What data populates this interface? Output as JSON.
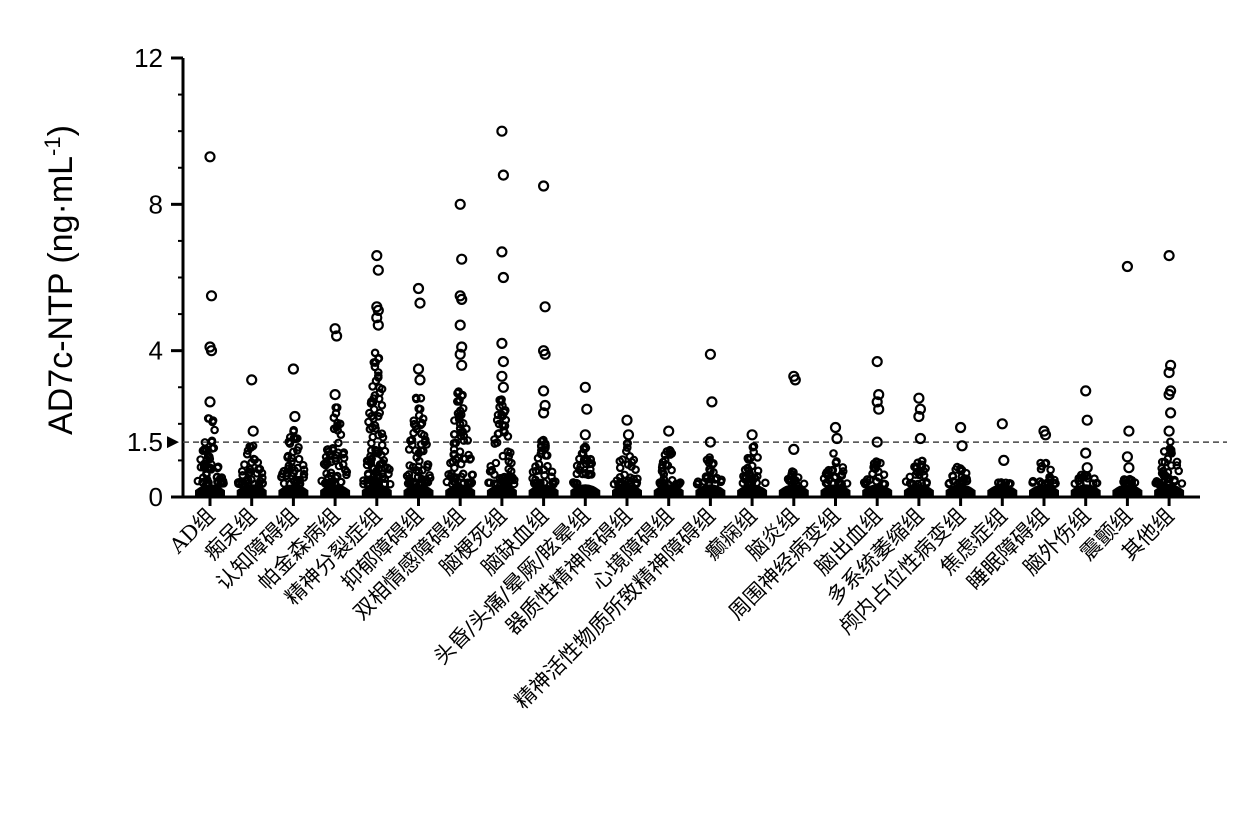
{
  "chart_data": {
    "type": "scatter",
    "ylabel": "AD7c-NTP (ng·mL",
    "ylabel_sup": "-1",
    "ylim": [
      0,
      12
    ],
    "yticks": [
      {
        "value": 0,
        "label": "0"
      },
      {
        "value": 1.5,
        "label": "1.5"
      },
      {
        "value": 4,
        "label": "4"
      },
      {
        "value": 8,
        "label": "8"
      },
      {
        "value": 12,
        "label": "12"
      }
    ],
    "reference_line": {
      "value": 1.5,
      "label": "1.5"
    },
    "grid": false,
    "categories": [
      {
        "label": "AD组",
        "max_dense": 2.3,
        "outliers": [
          9.3,
          5.5,
          4.1,
          4.0,
          2.6
        ]
      },
      {
        "label": "痴呆组",
        "max_dense": 1.6,
        "outliers": [
          3.2,
          1.8
        ]
      },
      {
        "label": "认知障碍组",
        "max_dense": 1.9,
        "outliers": [
          3.5,
          2.2
        ]
      },
      {
        "label": "帕金森病组",
        "max_dense": 2.6,
        "outliers": [
          4.6,
          4.4,
          2.8
        ]
      },
      {
        "label": "精神分裂症组",
        "max_dense": 4.0,
        "outliers": [
          6.6,
          6.2,
          5.2,
          5.1,
          4.9,
          4.7
        ]
      },
      {
        "label": "抑郁障碍组",
        "max_dense": 2.8,
        "outliers": [
          5.7,
          5.3,
          3.5,
          3.2
        ]
      },
      {
        "label": "双相情感障碍组",
        "max_dense": 3.0,
        "outliers": [
          8.0,
          6.5,
          5.5,
          5.4,
          4.7,
          4.1,
          3.9,
          3.6
        ]
      },
      {
        "label": "脑梗死组",
        "max_dense": 2.7,
        "outliers": [
          10.0,
          8.8,
          6.7,
          6.0,
          4.2,
          3.7,
          3.3,
          3.0
        ]
      },
      {
        "label": "脑缺血组",
        "max_dense": 1.6,
        "outliers": [
          8.5,
          5.2,
          4.0,
          3.9,
          2.9,
          2.5,
          2.3
        ]
      },
      {
        "label": "头昏/头痛/晕厥/眩晕组",
        "max_dense": 1.4,
        "outliers": [
          3.0,
          2.4,
          1.7
        ]
      },
      {
        "label": "器质性精神障碍组",
        "max_dense": 1.5,
        "outliers": [
          2.1,
          1.7
        ]
      },
      {
        "label": "心境障碍组",
        "max_dense": 1.3,
        "outliers": [
          1.8
        ]
      },
      {
        "label": "精神活性物质所致精神障碍组",
        "max_dense": 1.1,
        "outliers": [
          3.9,
          2.6,
          1.5
        ]
      },
      {
        "label": "癫痫组",
        "max_dense": 1.4,
        "outliers": [
          1.7
        ]
      },
      {
        "label": "脑炎组",
        "max_dense": 0.7,
        "outliers": [
          3.3,
          3.2,
          1.3
        ]
      },
      {
        "label": "周围神经病变组",
        "max_dense": 1.2,
        "outliers": [
          1.9,
          1.6
        ]
      },
      {
        "label": "脑出血组",
        "max_dense": 1.0,
        "outliers": [
          3.7,
          2.8,
          2.6,
          2.4,
          1.5
        ]
      },
      {
        "label": "多系统萎缩组",
        "max_dense": 1.1,
        "outliers": [
          2.7,
          2.4,
          2.2,
          1.6
        ]
      },
      {
        "label": "颅内占位性病变组",
        "max_dense": 0.9,
        "outliers": [
          1.9,
          1.4
        ]
      },
      {
        "label": "焦虑症组",
        "max_dense": 0.4,
        "outliers": [
          2.0,
          1.0
        ]
      },
      {
        "label": "睡眠障碍组",
        "max_dense": 1.0,
        "outliers": [
          1.8,
          1.7
        ]
      },
      {
        "label": "脑外伤组",
        "max_dense": 0.7,
        "outliers": [
          2.9,
          2.1,
          1.2,
          0.8
        ]
      },
      {
        "label": "震颤组",
        "max_dense": 0.5,
        "outliers": [
          6.3,
          1.8,
          1.1,
          0.8
        ]
      },
      {
        "label": "其他组",
        "max_dense": 1.6,
        "outliers": [
          6.6,
          3.6,
          3.4,
          2.9,
          2.8,
          2.3,
          1.8
        ]
      }
    ]
  }
}
